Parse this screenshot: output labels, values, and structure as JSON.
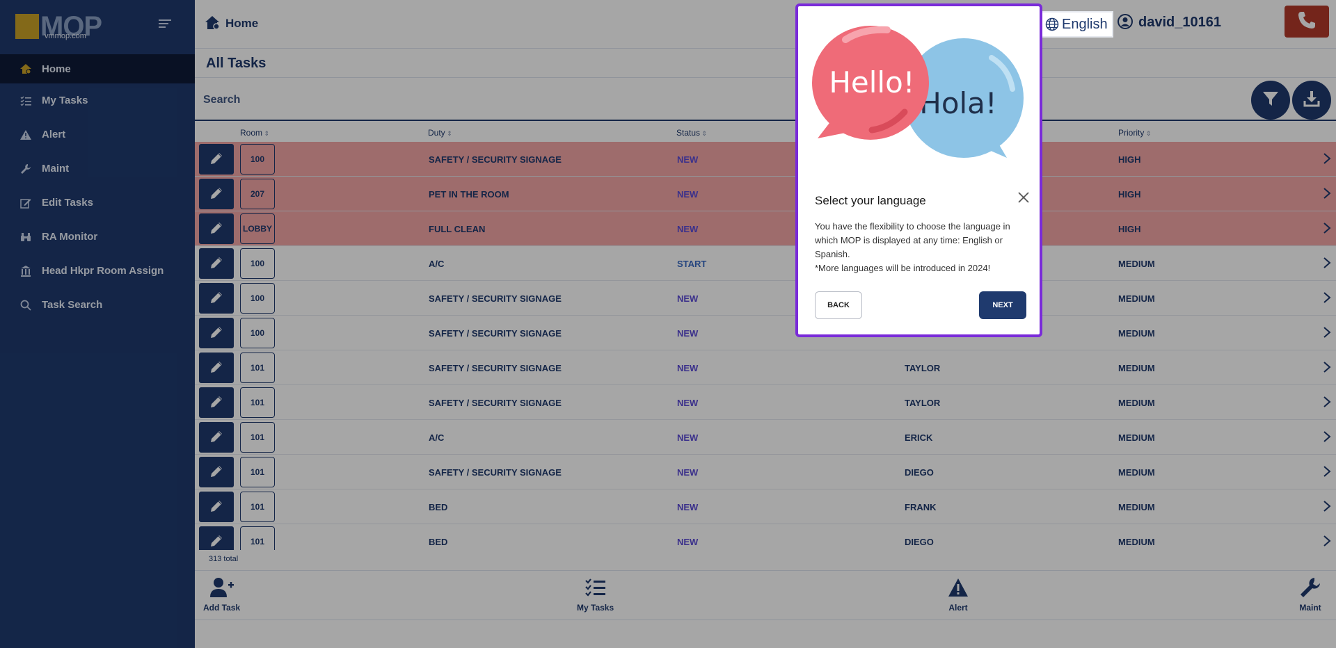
{
  "sidebar": {
    "logo_name": "MOP",
    "logo_sub": "vmmop.com",
    "items": [
      {
        "label": "Home",
        "icon": "home-gear-icon"
      },
      {
        "label": "My Tasks",
        "icon": "checklist-icon"
      },
      {
        "label": "Alert",
        "icon": "warning-icon"
      },
      {
        "label": "Maint",
        "icon": "wrench-icon"
      },
      {
        "label": "Edit Tasks",
        "icon": "edit-square-icon"
      },
      {
        "label": "RA Monitor",
        "icon": "binoculars-icon"
      },
      {
        "label": "Head Hkpr Room Assign",
        "icon": "building-icon"
      },
      {
        "label": "Task Search",
        "icon": "search-icon"
      }
    ]
  },
  "header": {
    "breadcrumb": "Home",
    "language": "English",
    "username": "david_10161"
  },
  "page": {
    "title": "All Tasks",
    "search_placeholder": "Search"
  },
  "table": {
    "columns": {
      "room": "Room",
      "duty": "Duty",
      "status": "Status",
      "priority": "Priority"
    },
    "rows": [
      {
        "room": "100",
        "duty": "SAFETY / SECURITY SIGNAGE",
        "status": "NEW",
        "assignee": "",
        "priority": "HIGH",
        "high": true
      },
      {
        "room": "207",
        "duty": "PET IN THE ROOM",
        "status": "NEW",
        "assignee": "",
        "priority": "HIGH",
        "high": true
      },
      {
        "room": "LOBBY",
        "duty": "FULL CLEAN",
        "status": "NEW",
        "assignee": "",
        "priority": "HIGH",
        "high": true
      },
      {
        "room": "100",
        "duty": "A/C",
        "status": "START",
        "assignee": "",
        "priority": "MEDIUM",
        "high": false
      },
      {
        "room": "100",
        "duty": "SAFETY / SECURITY SIGNAGE",
        "status": "NEW",
        "assignee": "",
        "priority": "MEDIUM",
        "high": false
      },
      {
        "room": "100",
        "duty": "SAFETY / SECURITY SIGNAGE",
        "status": "NEW",
        "assignee": "",
        "priority": "MEDIUM",
        "high": false
      },
      {
        "room": "101",
        "duty": "SAFETY / SECURITY SIGNAGE",
        "status": "NEW",
        "assignee": "TAYLOR",
        "priority": "MEDIUM",
        "high": false
      },
      {
        "room": "101",
        "duty": "SAFETY / SECURITY SIGNAGE",
        "status": "NEW",
        "assignee": "TAYLOR",
        "priority": "MEDIUM",
        "high": false
      },
      {
        "room": "101",
        "duty": "A/C",
        "status": "NEW",
        "assignee": "ERICK",
        "priority": "MEDIUM",
        "high": false
      },
      {
        "room": "101",
        "duty": "SAFETY / SECURITY SIGNAGE",
        "status": "NEW",
        "assignee": "DIEGO",
        "priority": "MEDIUM",
        "high": false
      },
      {
        "room": "101",
        "duty": "BED",
        "status": "NEW",
        "assignee": "FRANK",
        "priority": "MEDIUM",
        "high": false
      },
      {
        "room": "101",
        "duty": "BED",
        "status": "NEW",
        "assignee": "DIEGO",
        "priority": "MEDIUM",
        "high": false
      }
    ],
    "total": "313 total"
  },
  "bottom_bar": [
    {
      "label": "Add Task",
      "icon": "add-user-icon"
    },
    {
      "label": "My Tasks",
      "icon": "checklist-icon"
    },
    {
      "label": "Alert",
      "icon": "warning-icon"
    },
    {
      "label": "Maint",
      "icon": "wrench-icon"
    }
  ],
  "modal": {
    "bubble_left": "Hello!",
    "bubble_right": "Hola!",
    "title": "Select your language",
    "body_line1": "You have the flexibility to choose the language in which MOP is displayed at any time: English or Spanish.",
    "body_line2": "*More languages will be introduced in 2024!",
    "back_label": "BACK",
    "next_label": "NEXT"
  },
  "colors": {
    "brand_navy": "#1f3a6e",
    "high_priority_row": "#f3a7a7",
    "modal_border": "#7a2bd9",
    "phone_button": "#b33a2a",
    "logo_gold": "#c9a227"
  }
}
